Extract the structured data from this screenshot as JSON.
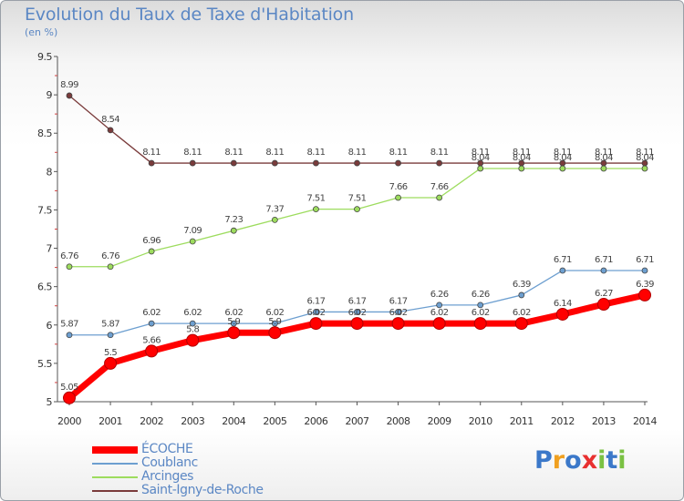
{
  "chart_data": {
    "type": "line",
    "title": "Evolution du Taux de Taxe d'Habitation",
    "subtitle": "(en %)",
    "x": [
      "2000",
      "2001",
      "2002",
      "2003",
      "2004",
      "2005",
      "2006",
      "2007",
      "2008",
      "2009",
      "2010",
      "2011",
      "2012",
      "2013",
      "2014"
    ],
    "ylim": [
      5,
      9.5
    ],
    "yticks": [
      "5",
      "5.5",
      "6",
      "6.5",
      "7",
      "7.5",
      "8",
      "8.5",
      "9",
      "9.5"
    ],
    "grid": false,
    "legend_position": "bottom-left",
    "series": [
      {
        "name": "ÉCOCHE",
        "color": "#ff0000",
        "values": [
          5.05,
          5.5,
          5.66,
          5.8,
          5.9,
          5.9,
          6.02,
          6.02,
          6.02,
          6.02,
          6.02,
          6.02,
          6.14,
          6.27,
          6.39
        ],
        "labels": [
          "5.05",
          "5.5",
          "5.66",
          "5.8",
          "5.9",
          "5.9",
          "6.02",
          "6.02",
          "6.02",
          "6.02",
          "6.02",
          "6.02",
          "6.14",
          "6.27",
          "6.39"
        ]
      },
      {
        "name": "Coublanc",
        "color": "#6d9fd0",
        "values": [
          5.87,
          5.87,
          6.02,
          6.02,
          6.02,
          6.02,
          6.17,
          6.17,
          6.17,
          6.26,
          6.26,
          6.39,
          6.71,
          6.71,
          6.71
        ],
        "labels": [
          "5.87",
          "5.87",
          "6.02",
          "6.02",
          "6.02",
          "6.02",
          "6.17",
          "6.17",
          "6.17",
          "6.26",
          "6.26",
          "6.39",
          "6.71",
          "6.71",
          "6.71"
        ]
      },
      {
        "name": "Arcinges",
        "color": "#9ddc5e",
        "values": [
          6.76,
          6.76,
          6.96,
          7.09,
          7.23,
          7.37,
          7.51,
          7.51,
          7.66,
          7.66,
          8.04,
          8.04,
          8.04,
          8.04,
          8.04
        ],
        "labels": [
          "6.76",
          "6.76",
          "6.96",
          "7.09",
          "7.23",
          "7.37",
          "7.51",
          "7.51",
          "7.66",
          "7.66",
          "8.04",
          "8.04",
          "8.04",
          "8.04",
          "8.04"
        ]
      },
      {
        "name": "Saint-Igny-de-Roche",
        "color": "#7a3b3b",
        "values": [
          8.99,
          8.54,
          8.11,
          8.11,
          8.11,
          8.11,
          8.11,
          8.11,
          8.11,
          8.11,
          8.11,
          8.11,
          8.11,
          8.11,
          8.11
        ],
        "labels": [
          "8.99",
          "8.54",
          "8.11",
          "8.11",
          "8.11",
          "8.11",
          "8.11",
          "8.11",
          "8.11",
          "8.11",
          "8.11",
          "8.11",
          "8.11",
          "8.11",
          "8.11"
        ]
      }
    ]
  },
  "logo": {
    "letters": [
      "P",
      "r",
      "o",
      "x",
      "i",
      "t",
      "i"
    ],
    "colors": [
      "#3b78c9",
      "#f0a020",
      "#3b78c9",
      "#e83030",
      "#7ac143",
      "#3b78c9",
      "#7ac143"
    ]
  }
}
